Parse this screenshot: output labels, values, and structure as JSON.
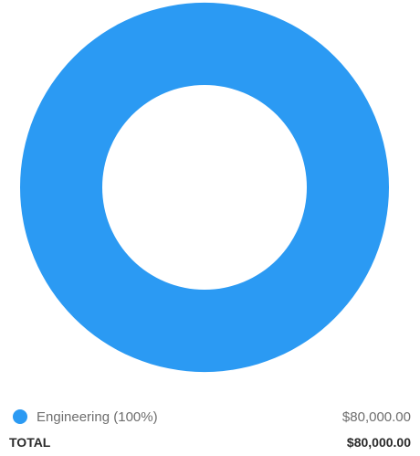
{
  "chart_data": {
    "type": "pie",
    "donut": true,
    "categories": [
      "Engineering"
    ],
    "values": [
      80000
    ],
    "percentages": [
      100
    ],
    "colors": [
      "#2b9af3"
    ],
    "legend": [
      {
        "label": "Engineering (100%)",
        "value": "$80,000.00",
        "color": "#2b9af3"
      }
    ],
    "legend_position": "bottom"
  },
  "legend": {
    "items": [
      {
        "label": "Engineering (100%)",
        "value": "$80,000.00",
        "color": "#2b9af3"
      }
    ],
    "total_label": "TOTAL",
    "total_value": "$80,000.00"
  }
}
